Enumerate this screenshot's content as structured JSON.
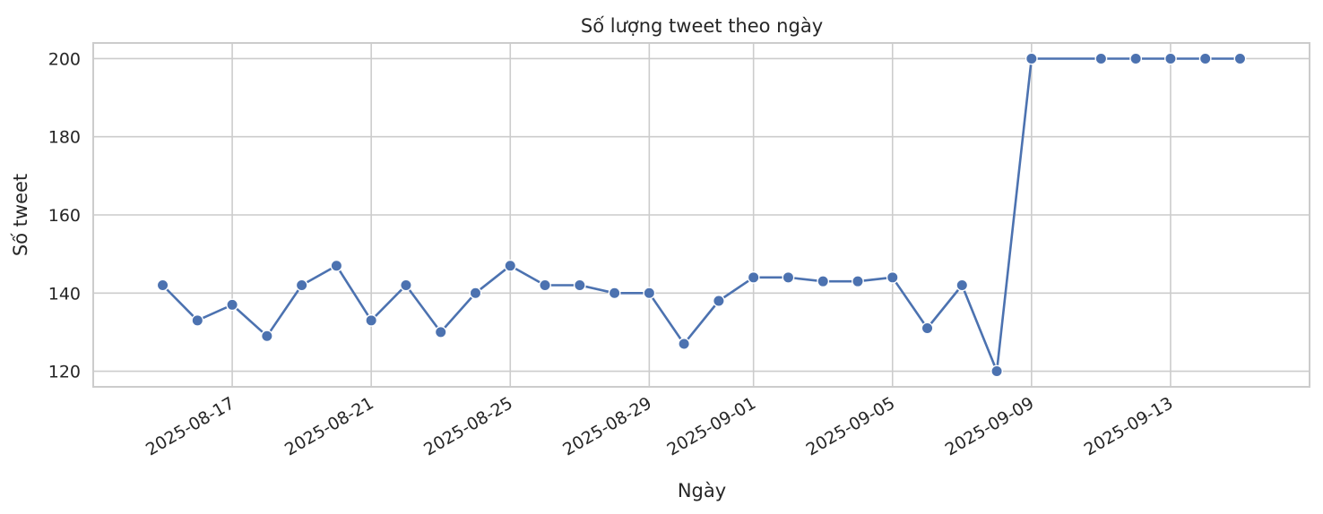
{
  "chart_data": {
    "type": "line",
    "title": "Số lượng tweet theo ngày",
    "xlabel": "Ngày",
    "ylabel": "Số tweet",
    "x_tick_labels": [
      "2025-08-17",
      "2025-08-21",
      "2025-08-25",
      "2025-08-29",
      "2025-09-01",
      "2025-09-05",
      "2025-09-09",
      "2025-09-13"
    ],
    "y_ticks": [
      120,
      140,
      160,
      180,
      200
    ],
    "ylim": [
      116,
      204
    ],
    "xlim": [
      "2025-08-13",
      "2025-09-17"
    ],
    "grid": true,
    "color": "#4c72b0",
    "series": [
      {
        "x": [
          "2025-08-15",
          "2025-08-16",
          "2025-08-17",
          "2025-08-18",
          "2025-08-19",
          "2025-08-20",
          "2025-08-21",
          "2025-08-22",
          "2025-08-23",
          "2025-08-24",
          "2025-08-25",
          "2025-08-26",
          "2025-08-27",
          "2025-08-28",
          "2025-08-29",
          "2025-08-30",
          "2025-08-31",
          "2025-09-01",
          "2025-09-02",
          "2025-09-03",
          "2025-09-04",
          "2025-09-05",
          "2025-09-06",
          "2025-09-07",
          "2025-09-08",
          "2025-09-09",
          "2025-09-11",
          "2025-09-12",
          "2025-09-13",
          "2025-09-14",
          "2025-09-15"
        ],
        "y": [
          142,
          133,
          137,
          129,
          142,
          147,
          133,
          142,
          130,
          140,
          147,
          142,
          142,
          140,
          140,
          127,
          138,
          144,
          144,
          143,
          143,
          144,
          131,
          142,
          120,
          200,
          200,
          200,
          200,
          200,
          200
        ]
      }
    ]
  }
}
